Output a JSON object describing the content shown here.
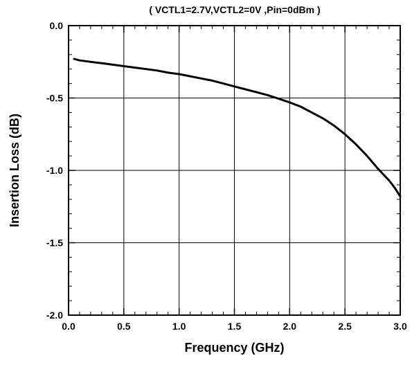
{
  "chart_data": {
    "type": "line",
    "title": "( VCTL1=2.7V,VCTL2=0V ,Pin=0dBm )",
    "xlabel": "Frequency (GHz)",
    "ylabel": "Insertion Loss (dB)",
    "xlim": [
      0.0,
      3.0
    ],
    "ylim": [
      -2.0,
      0.0
    ],
    "xticks": [
      "0.0",
      "0.5",
      "1.0",
      "1.5",
      "2.0",
      "2.5",
      "3.0"
    ],
    "yticks": [
      "0.0",
      "-0.5",
      "-1.0",
      "-1.5",
      "-2.0"
    ],
    "grid": true,
    "series": [
      {
        "color": "#000000",
        "x": [
          0.05,
          0.1,
          0.2,
          0.3,
          0.4,
          0.5,
          0.6,
          0.7,
          0.8,
          0.9,
          1.0,
          1.1,
          1.2,
          1.3,
          1.4,
          1.5,
          1.6,
          1.7,
          1.8,
          1.9,
          2.0,
          2.1,
          2.2,
          2.3,
          2.4,
          2.5,
          2.6,
          2.7,
          2.8,
          2.9,
          2.95,
          3.0
        ],
        "values": [
          -0.23,
          -0.24,
          -0.25,
          -0.26,
          -0.27,
          -0.28,
          -0.29,
          -0.3,
          -0.31,
          -0.325,
          -0.335,
          -0.35,
          -0.365,
          -0.38,
          -0.4,
          -0.42,
          -0.44,
          -0.46,
          -0.48,
          -0.505,
          -0.53,
          -0.56,
          -0.6,
          -0.64,
          -0.69,
          -0.75,
          -0.82,
          -0.9,
          -0.99,
          -1.07,
          -1.12,
          -1.18
        ]
      }
    ]
  }
}
